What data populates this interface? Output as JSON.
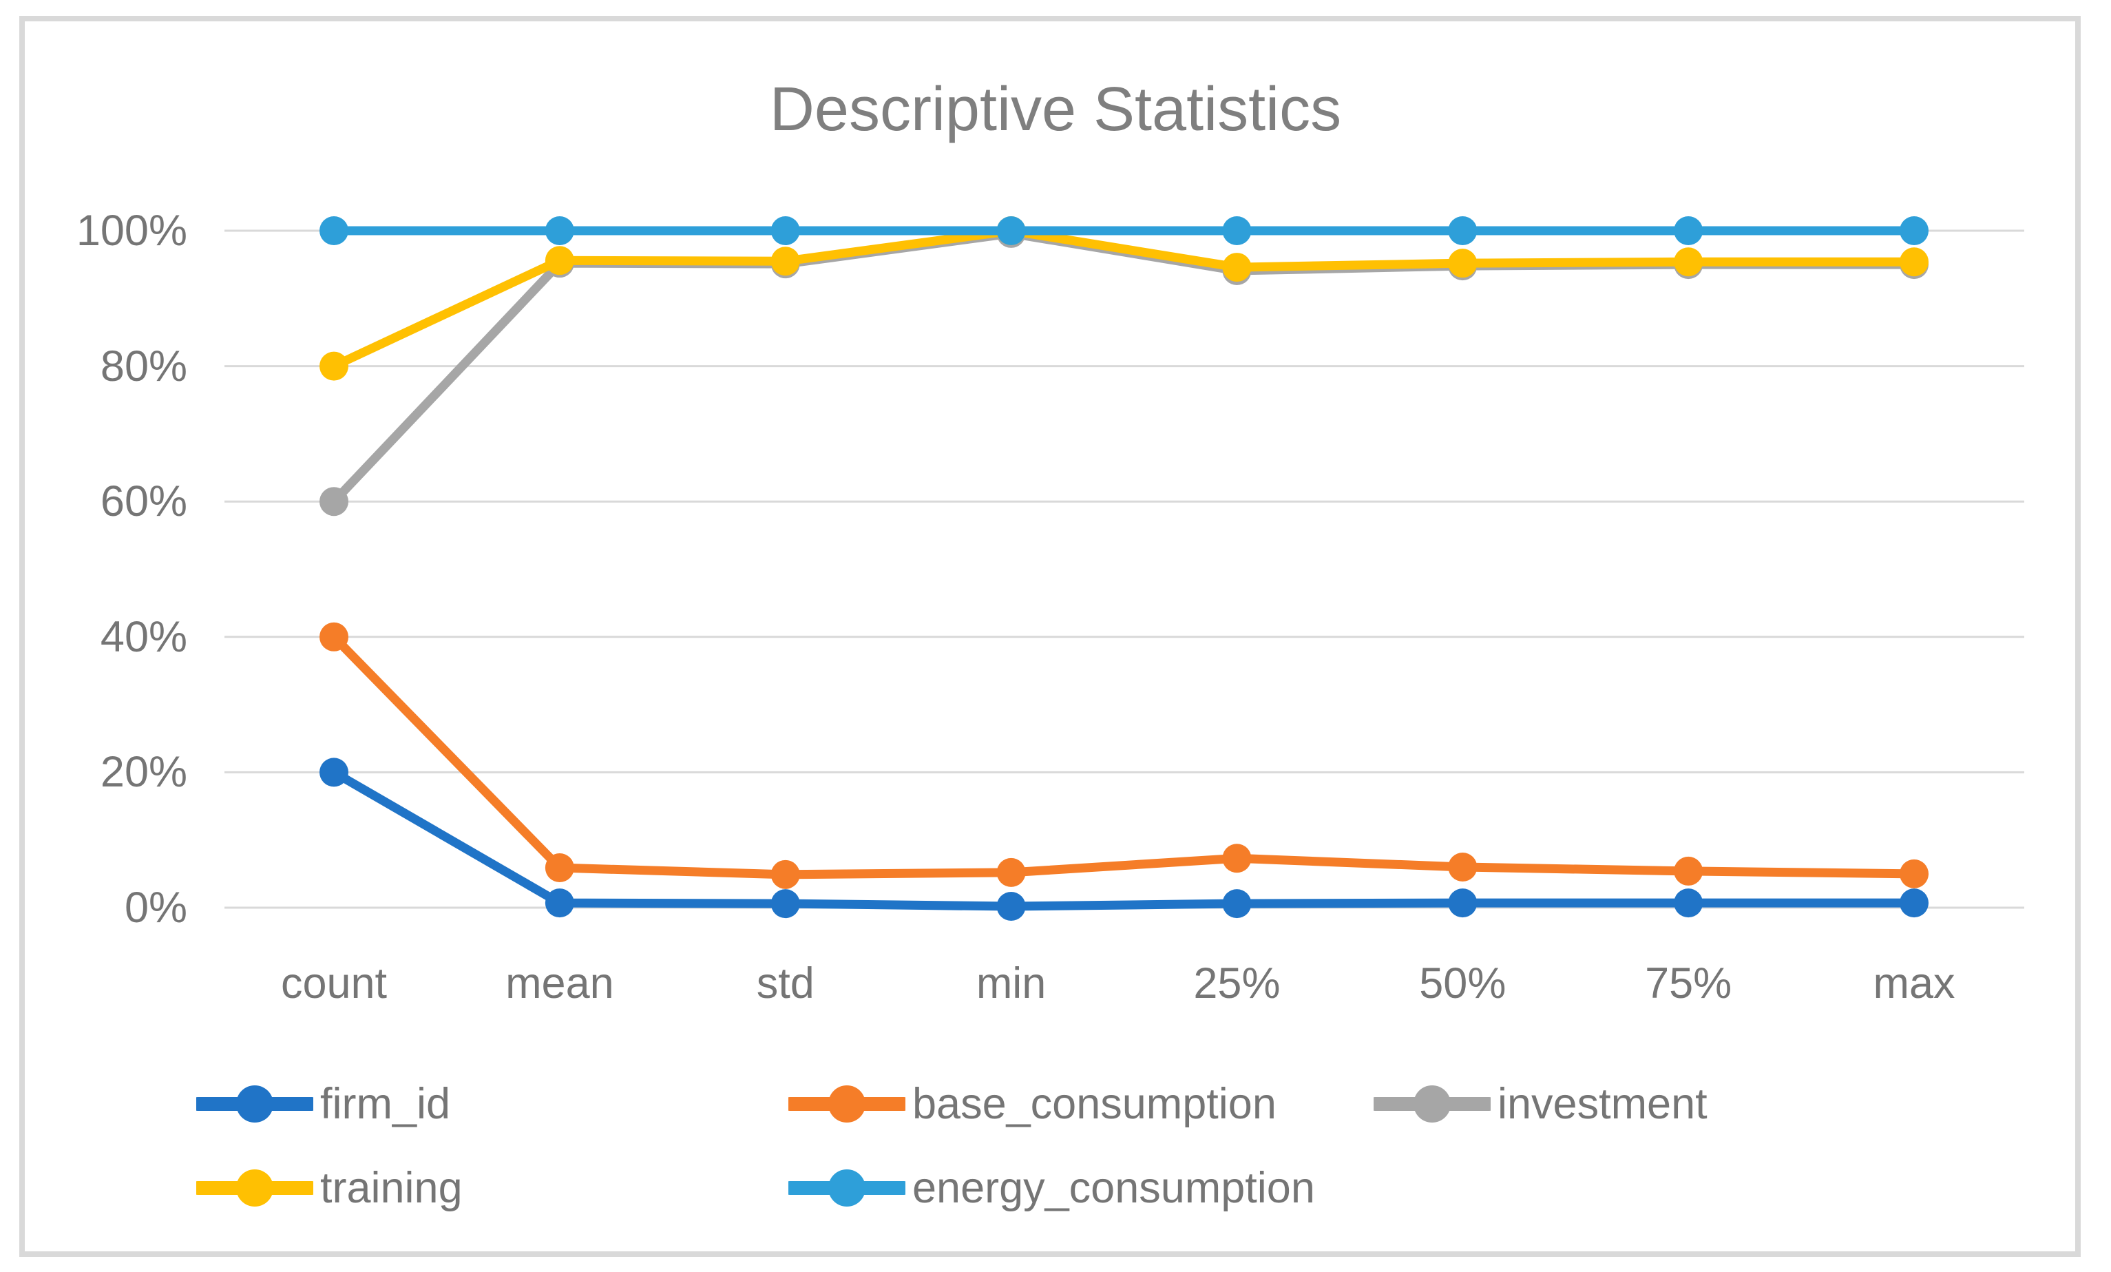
{
  "chart_data": {
    "type": "line",
    "title": "Descriptive Statistics",
    "categories": [
      "count",
      "mean",
      "std",
      "min",
      "25%",
      "50%",
      "75%",
      "max"
    ],
    "y_ticks": [
      "0%",
      "20%",
      "40%",
      "60%",
      "80%",
      "100%"
    ],
    "y_tick_values": [
      0,
      20,
      40,
      60,
      80,
      100
    ],
    "ylim": [
      0,
      100
    ],
    "grid": true,
    "legend_position": "bottom",
    "series": [
      {
        "name": "firm_id",
        "color": "#2074C7",
        "values": [
          20,
          0.7,
          0.6,
          0.2,
          0.6,
          0.7,
          0.7,
          0.7
        ]
      },
      {
        "name": "base_consumption",
        "color": "#F57D28",
        "values": [
          40,
          5.9,
          4.9,
          5.2,
          7.3,
          6.0,
          5.4,
          5.0
        ]
      },
      {
        "name": "investment",
        "color": "#A6A6A6",
        "values": [
          60,
          95.2,
          95.1,
          99.6,
          94.1,
          94.8,
          95.0,
          95.0
        ]
      },
      {
        "name": "training",
        "color": "#FFC002",
        "values": [
          80,
          95.6,
          95.5,
          100,
          94.6,
          95.2,
          95.4,
          95.4
        ]
      },
      {
        "name": "energy_consumption",
        "color": "#2E9FD9",
        "values": [
          100,
          100,
          100,
          100,
          100,
          100,
          100,
          100
        ]
      }
    ]
  },
  "frame": {
    "border_color": "#D9D9D9",
    "gridline_color": "#D9D9D9",
    "text_color": "#757575",
    "title_color": "#7F7F7F",
    "background": "#FFFFFF"
  }
}
